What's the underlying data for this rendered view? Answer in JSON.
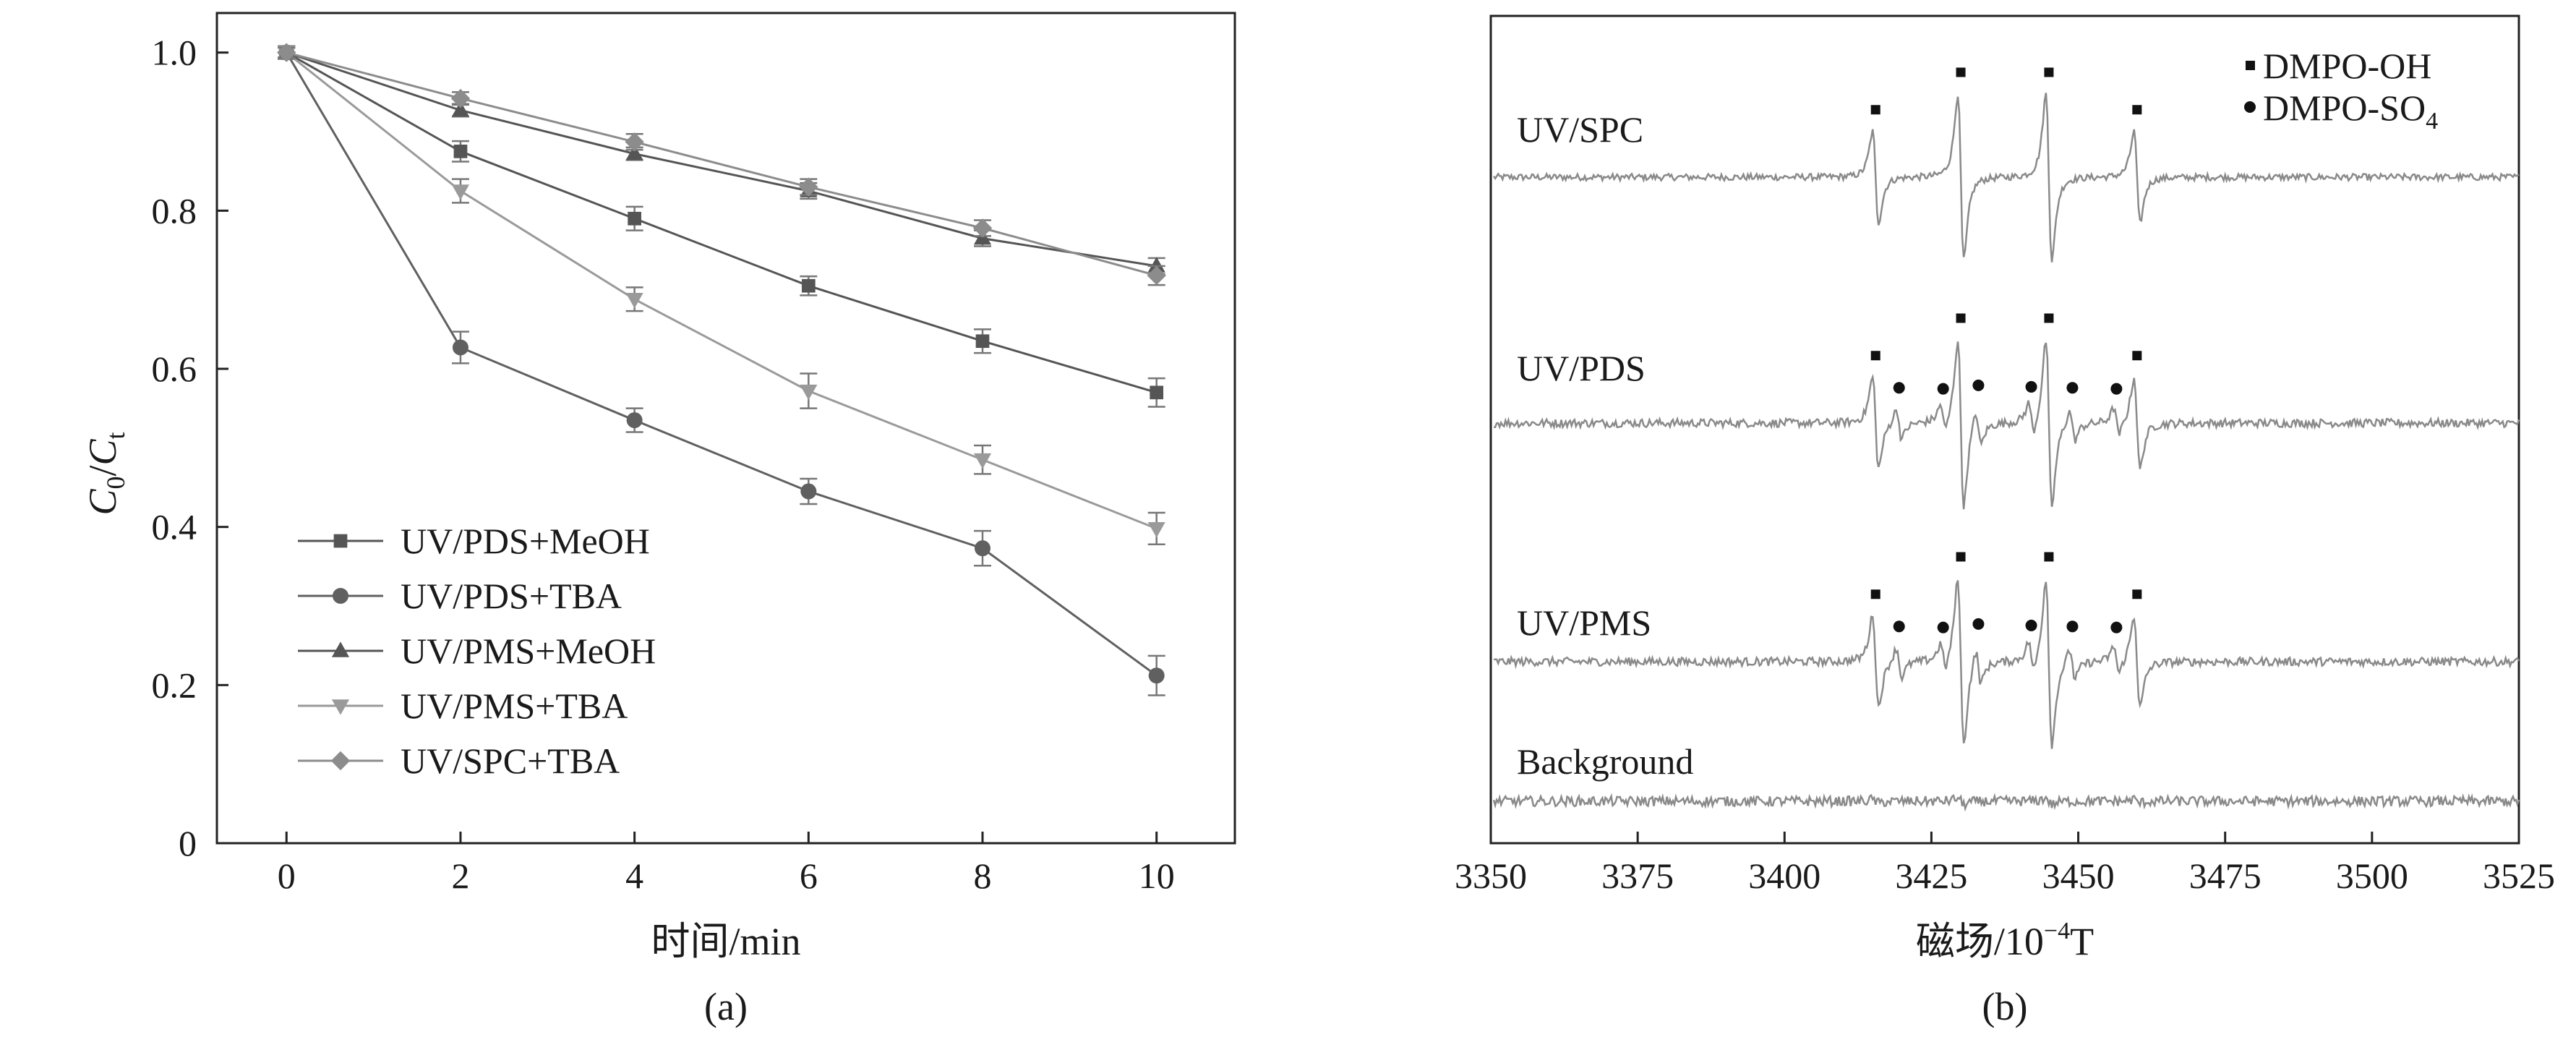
{
  "chart_data": [
    {
      "type": "line",
      "panel_label": "(a)",
      "xlabel": "时间/min",
      "ylabel_main": "C",
      "ylabel_sub0": "0",
      "ylabel_slash": "/",
      "ylabel_main2": "C",
      "ylabel_sub1": "t",
      "x": [
        0,
        2,
        4,
        6,
        8,
        10
      ],
      "xlim": [
        -0.8,
        10.9
      ],
      "ylim": [
        0,
        1.05
      ],
      "xticks": [
        "0",
        "2",
        "4",
        "6",
        "8",
        "10"
      ],
      "yticks": [
        "0",
        "0.2",
        "0.4",
        "0.6",
        "0.8",
        "1.0"
      ],
      "ytick_values": [
        0,
        0.2,
        0.4,
        0.6,
        0.8,
        1.0
      ],
      "legend_position": "bottom-left",
      "series": [
        {
          "name": "UV/PDS+MeOH",
          "marker": "square",
          "color": "#555555",
          "values": [
            1.0,
            0.875,
            0.79,
            0.705,
            0.635,
            0.57
          ],
          "errors": [
            0.008,
            0.013,
            0.015,
            0.012,
            0.015,
            0.018
          ]
        },
        {
          "name": "UV/PDS+TBA",
          "marker": "circle",
          "color": "#606060",
          "values": [
            1.0,
            0.627,
            0.535,
            0.445,
            0.373,
            0.212
          ],
          "errors": [
            0.008,
            0.02,
            0.015,
            0.016,
            0.022,
            0.025
          ]
        },
        {
          "name": "UV/PMS+MeOH",
          "marker": "triangle-up",
          "color": "#555555",
          "values": [
            1.0,
            0.927,
            0.872,
            0.825,
            0.765,
            0.73
          ],
          "errors": [
            0.006,
            0.008,
            0.008,
            0.01,
            0.01,
            0.01
          ]
        },
        {
          "name": "UV/PMS+TBA",
          "marker": "triangle-down",
          "color": "#9a9a9a",
          "values": [
            1.0,
            0.825,
            0.688,
            0.572,
            0.485,
            0.398
          ],
          "errors": [
            0.008,
            0.015,
            0.015,
            0.022,
            0.018,
            0.02
          ]
        },
        {
          "name": "UV/SPC+TBA",
          "marker": "diamond",
          "color": "#8c8c8c",
          "values": [
            1.0,
            0.942,
            0.887,
            0.83,
            0.778,
            0.718
          ],
          "errors": [
            0.006,
            0.008,
            0.01,
            0.01,
            0.01,
            0.012
          ]
        }
      ]
    },
    {
      "type": "line",
      "panel_label": "(b)",
      "xlabel_main": "磁场/10",
      "xlabel_exp": "−4",
      "xlabel_unit": "T",
      "xlim": [
        3350,
        3525
      ],
      "xticks": [
        "3350",
        "3375",
        "3400",
        "3425",
        "3450",
        "3475",
        "3500",
        "3525"
      ],
      "xtick_values": [
        3350,
        3375,
        3400,
        3425,
        3450,
        3475,
        3500,
        3525
      ],
      "legend_position": "top-right",
      "legend": [
        {
          "name_main": "DMPO-OH",
          "marker": "square"
        },
        {
          "name_main": "DMPO-SO",
          "name_sub": "4",
          "marker": "circle"
        }
      ],
      "oh_peaks": [
        3415.5,
        3430,
        3445,
        3460
      ],
      "oh_relative_heights": [
        0.55,
        1.0,
        1.0,
        0.55
      ],
      "so4_peaks": [
        3419.5,
        3427,
        3433,
        3442,
        3449,
        3456.5
      ],
      "so4_relative_heights": [
        0.3,
        0.28,
        0.35,
        0.32,
        0.3,
        0.28
      ],
      "series": [
        {
          "name": "UV/SPC",
          "oh_amplitude": 1.0,
          "so4_amplitude": 0.0,
          "noise": 0.04
        },
        {
          "name": "UV/PDS",
          "oh_amplitude": 1.0,
          "so4_amplitude": 0.6,
          "noise": 0.05
        },
        {
          "name": "UV/PMS",
          "oh_amplitude": 1.0,
          "so4_amplitude": 0.6,
          "noise": 0.05
        },
        {
          "name": "Background",
          "oh_amplitude": 0.04,
          "so4_amplitude": 0.0,
          "noise": 0.06
        }
      ]
    }
  ]
}
